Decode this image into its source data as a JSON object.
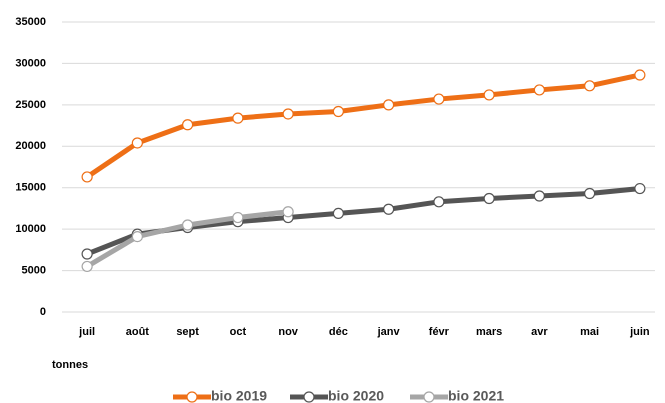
{
  "chart_data": {
    "type": "line",
    "categories": [
      "juil",
      "août",
      "sept",
      "oct",
      "nov",
      "déc",
      "janv",
      "févr",
      "mars",
      "avr",
      "mai",
      "juin"
    ],
    "series": [
      {
        "name": "bio 2019",
        "color": "#ee6f16",
        "values": [
          16300,
          20400,
          22600,
          23400,
          23900,
          24200,
          25000,
          25700,
          26200,
          26800,
          27300,
          28600
        ]
      },
      {
        "name": "bio 2020",
        "color": "#555555",
        "values": [
          7000,
          9400,
          10200,
          10900,
          11400,
          11900,
          12400,
          13300,
          13700,
          14000,
          14300,
          14900
        ]
      },
      {
        "name": "bio 2021",
        "color": "#a6a6a6",
        "values": [
          5500,
          9100,
          10500,
          11400,
          12100,
          null,
          null,
          null,
          null,
          null,
          null,
          null
        ]
      }
    ],
    "ylabel": "tonnes",
    "ylim": [
      0,
      35000
    ],
    "yticks": [
      0,
      5000,
      10000,
      15000,
      20000,
      25000,
      30000,
      35000
    ],
    "grid": true,
    "legend": "bottom"
  }
}
